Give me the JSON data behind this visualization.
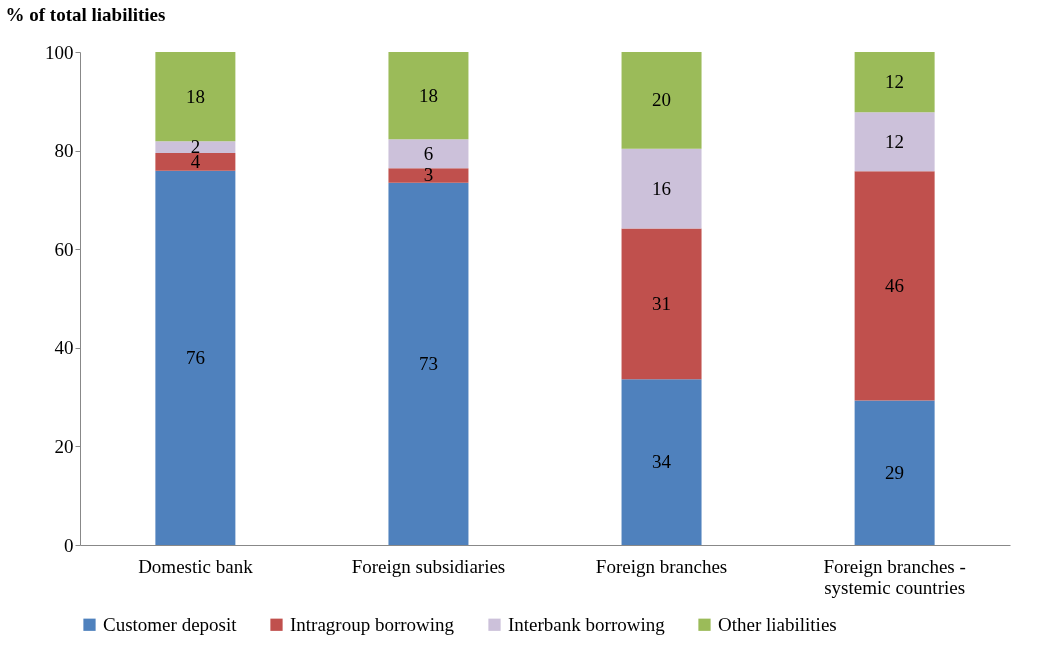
{
  "chart_data": {
    "type": "bar",
    "stacked": true,
    "ylabel": "% of total liabilities",
    "categories": [
      "Domestic bank",
      "Foreign subsidiaries",
      "Foreign branches",
      "Foreign branches - systemic countries"
    ],
    "series": [
      {
        "name": "Customer deposit",
        "color": "#4f81bd",
        "values": [
          75.9,
          73.5,
          33.6,
          29.3
        ],
        "value_labels": [
          "76",
          "73",
          "34",
          "29"
        ]
      },
      {
        "name": "Intragroup borrowing",
        "color": "#c0504d",
        "values": [
          3.6,
          2.9,
          30.6,
          46.5
        ],
        "value_labels": [
          "4",
          "3",
          "31",
          "46"
        ]
      },
      {
        "name": "Interbank borrowing",
        "color": "#ccc1da",
        "values": [
          2.4,
          5.9,
          16.2,
          12.0
        ],
        "value_labels": [
          "2",
          "6",
          "16",
          "12"
        ]
      },
      {
        "name": "Other liabilities",
        "color": "#9bbb59",
        "values": [
          18.1,
          17.7,
          19.6,
          12.2
        ],
        "value_labels": [
          "18",
          "18",
          "20",
          "12"
        ]
      }
    ],
    "ylim": [
      0,
      100
    ],
    "yticks": [
      0,
      20,
      40,
      60,
      80,
      100
    ],
    "grid": false,
    "legend": "bottom"
  }
}
